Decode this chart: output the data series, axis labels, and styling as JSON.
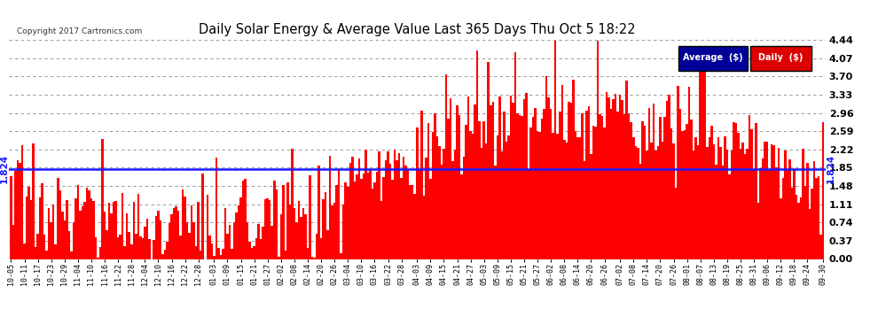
{
  "title": "Daily Solar Energy & Average Value Last 365 Days Thu Oct 5 18:22",
  "copyright": "Copyright 2017 Cartronics.com",
  "average_value": 1.824,
  "average_label": "1.824",
  "y_ticks": [
    0.0,
    0.37,
    0.74,
    1.11,
    1.48,
    1.85,
    2.22,
    2.59,
    2.96,
    3.33,
    3.7,
    4.07,
    4.44
  ],
  "y_max": 4.44,
  "bar_color": "#ff0000",
  "average_line_color": "#1a1aff",
  "background_color": "#ffffff",
  "grid_color": "#888888",
  "title_color": "#000000",
  "legend_avg_bg": "#000099",
  "legend_daily_bg": "#dd0000",
  "x_labels": [
    "10-05",
    "10-11",
    "10-17",
    "10-23",
    "10-29",
    "11-04",
    "11-10",
    "11-16",
    "11-22",
    "11-28",
    "12-04",
    "12-10",
    "12-16",
    "12-22",
    "12-28",
    "01-03",
    "01-09",
    "01-15",
    "01-21",
    "01-27",
    "02-02",
    "02-08",
    "02-14",
    "02-20",
    "02-26",
    "03-04",
    "03-10",
    "03-16",
    "03-22",
    "03-28",
    "04-03",
    "04-09",
    "04-15",
    "04-21",
    "04-27",
    "05-03",
    "05-09",
    "05-15",
    "05-21",
    "05-27",
    "06-02",
    "06-08",
    "06-14",
    "06-20",
    "06-26",
    "07-02",
    "07-08",
    "07-14",
    "07-20",
    "07-26",
    "08-01",
    "08-07",
    "08-13",
    "08-19",
    "08-25",
    "08-31",
    "09-06",
    "09-12",
    "09-18",
    "09-24",
    "09-30"
  ],
  "num_bars": 365
}
